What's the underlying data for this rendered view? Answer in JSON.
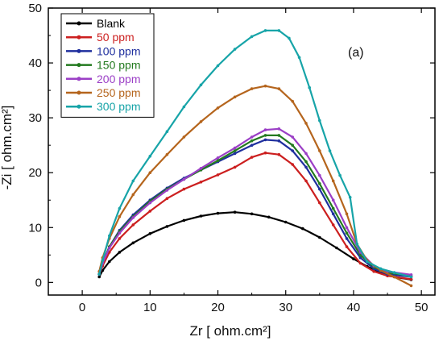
{
  "chart_data": {
    "type": "line",
    "title": "",
    "panel_label": "(a)",
    "xlabel": "Zr [ ohm.cm²]",
    "ylabel": "-Zi [ ohm.cm²]",
    "xlim": [
      -5,
      52
    ],
    "ylim": [
      -2.3,
      50
    ],
    "xticks": [
      0,
      10,
      20,
      30,
      40,
      50
    ],
    "yticks": [
      0,
      10,
      20,
      30,
      40,
      50
    ],
    "grid": false,
    "legend_position": "top-left",
    "series": [
      {
        "name": "Blank",
        "color": "#000000",
        "points": [
          [
            2.5,
            1.0
          ],
          [
            3.0,
            2.2
          ],
          [
            4.0,
            3.8
          ],
          [
            5.5,
            5.5
          ],
          [
            7.5,
            7.2
          ],
          [
            10.0,
            8.9
          ],
          [
            12.5,
            10.2
          ],
          [
            15.0,
            11.3
          ],
          [
            17.5,
            12.1
          ],
          [
            20.0,
            12.6
          ],
          [
            22.5,
            12.8
          ],
          [
            25.0,
            12.5
          ],
          [
            27.5,
            11.9
          ],
          [
            30.0,
            11.0
          ],
          [
            32.5,
            9.8
          ],
          [
            35.0,
            8.2
          ],
          [
            37.5,
            6.3
          ],
          [
            40.0,
            4.3
          ],
          [
            42.0,
            2.9
          ],
          [
            44.0,
            1.8
          ],
          [
            46.0,
            1.0
          ],
          [
            48.5,
            0.5
          ]
        ]
      },
      {
        "name": "50 ppm",
        "color": "#cc1f1f",
        "points": [
          [
            2.5,
            1.5
          ],
          [
            3.0,
            3.0
          ],
          [
            4.0,
            5.5
          ],
          [
            5.5,
            8.0
          ],
          [
            7.5,
            10.5
          ],
          [
            10.0,
            13.0
          ],
          [
            12.5,
            15.3
          ],
          [
            15.0,
            17.0
          ],
          [
            17.5,
            18.3
          ],
          [
            20.0,
            19.6
          ],
          [
            22.5,
            21.0
          ],
          [
            25.0,
            22.8
          ],
          [
            27.0,
            23.6
          ],
          [
            29.0,
            23.3
          ],
          [
            31.0,
            21.5
          ],
          [
            33.0,
            18.5
          ],
          [
            35.0,
            14.5
          ],
          [
            37.0,
            10.5
          ],
          [
            39.0,
            6.5
          ],
          [
            41.0,
            3.5
          ],
          [
            43.0,
            2.0
          ],
          [
            45.0,
            1.2
          ],
          [
            48.5,
            0.6
          ]
        ]
      },
      {
        "name": "100 ppm",
        "color": "#1f2f9e",
        "points": [
          [
            2.5,
            1.5
          ],
          [
            3.0,
            3.5
          ],
          [
            4.0,
            6.5
          ],
          [
            5.5,
            9.5
          ],
          [
            7.5,
            12.3
          ],
          [
            10.0,
            15.0
          ],
          [
            12.5,
            17.2
          ],
          [
            15.0,
            19.0
          ],
          [
            17.5,
            20.5
          ],
          [
            20.0,
            22.0
          ],
          [
            22.5,
            23.5
          ],
          [
            25.0,
            25.0
          ],
          [
            27.0,
            26.0
          ],
          [
            29.0,
            25.8
          ],
          [
            31.0,
            24.0
          ],
          [
            33.0,
            21.0
          ],
          [
            35.0,
            17.0
          ],
          [
            37.0,
            12.5
          ],
          [
            39.0,
            8.0
          ],
          [
            41.0,
            4.5
          ],
          [
            43.0,
            2.5
          ],
          [
            45.0,
            1.5
          ],
          [
            48.5,
            1.0
          ]
        ]
      },
      {
        "name": "150 ppm",
        "color": "#237a1f",
        "points": [
          [
            2.5,
            1.5
          ],
          [
            3.0,
            3.5
          ],
          [
            4.0,
            6.5
          ],
          [
            5.5,
            9.3
          ],
          [
            7.5,
            12.0
          ],
          [
            10.0,
            14.8
          ],
          [
            12.5,
            17.0
          ],
          [
            15.0,
            18.8
          ],
          [
            17.5,
            20.5
          ],
          [
            20.0,
            22.2
          ],
          [
            22.5,
            24.0
          ],
          [
            25.0,
            25.8
          ],
          [
            27.0,
            26.8
          ],
          [
            29.0,
            26.8
          ],
          [
            31.0,
            25.0
          ],
          [
            33.0,
            22.0
          ],
          [
            35.0,
            18.0
          ],
          [
            37.0,
            13.5
          ],
          [
            39.0,
            9.0
          ],
          [
            41.0,
            5.0
          ],
          [
            43.0,
            2.8
          ],
          [
            45.0,
            1.8
          ],
          [
            48.5,
            1.2
          ]
        ]
      },
      {
        "name": "200 ppm",
        "color": "#9b3fc6",
        "points": [
          [
            2.5,
            1.5
          ],
          [
            3.0,
            3.5
          ],
          [
            4.0,
            6.3
          ],
          [
            5.5,
            9.0
          ],
          [
            7.5,
            11.8
          ],
          [
            10.0,
            14.5
          ],
          [
            12.5,
            16.8
          ],
          [
            15.0,
            18.8
          ],
          [
            17.5,
            20.8
          ],
          [
            20.0,
            22.7
          ],
          [
            22.5,
            24.5
          ],
          [
            25.0,
            26.5
          ],
          [
            27.0,
            27.8
          ],
          [
            29.0,
            28.0
          ],
          [
            31.0,
            26.5
          ],
          [
            33.0,
            23.5
          ],
          [
            35.0,
            19.5
          ],
          [
            37.0,
            15.0
          ],
          [
            39.0,
            10.0
          ],
          [
            41.0,
            5.5
          ],
          [
            43.0,
            3.0
          ],
          [
            45.0,
            2.0
          ],
          [
            48.5,
            1.4
          ]
        ]
      },
      {
        "name": "250 ppm",
        "color": "#b5651d",
        "points": [
          [
            2.5,
            2.0
          ],
          [
            3.0,
            4.5
          ],
          [
            4.0,
            8.0
          ],
          [
            5.5,
            12.0
          ],
          [
            7.5,
            16.0
          ],
          [
            10.0,
            20.0
          ],
          [
            12.5,
            23.3
          ],
          [
            15.0,
            26.5
          ],
          [
            17.5,
            29.3
          ],
          [
            20.0,
            31.8
          ],
          [
            22.5,
            33.8
          ],
          [
            25.0,
            35.3
          ],
          [
            27.0,
            35.8
          ],
          [
            29.0,
            35.3
          ],
          [
            31.0,
            33.0
          ],
          [
            33.0,
            29.0
          ],
          [
            35.0,
            24.0
          ],
          [
            37.0,
            18.5
          ],
          [
            39.0,
            12.5
          ],
          [
            40.5,
            7.0
          ],
          [
            42.0,
            4.0
          ],
          [
            44.0,
            2.2
          ],
          [
            46.0,
            1.0
          ],
          [
            48.5,
            -0.6
          ]
        ]
      },
      {
        "name": "300 ppm",
        "color": "#17a4a8",
        "points": [
          [
            2.5,
            1.5
          ],
          [
            3.0,
            4.0
          ],
          [
            4.0,
            8.5
          ],
          [
            5.5,
            13.5
          ],
          [
            7.5,
            18.5
          ],
          [
            10.0,
            23.0
          ],
          [
            12.5,
            27.5
          ],
          [
            15.0,
            32.0
          ],
          [
            17.5,
            36.0
          ],
          [
            20.0,
            39.5
          ],
          [
            22.5,
            42.5
          ],
          [
            25.0,
            44.8
          ],
          [
            27.0,
            45.9
          ],
          [
            29.0,
            45.9
          ],
          [
            30.5,
            44.5
          ],
          [
            32.0,
            41.0
          ],
          [
            33.5,
            35.5
          ],
          [
            35.0,
            29.5
          ],
          [
            36.5,
            24.0
          ],
          [
            38.0,
            19.5
          ],
          [
            39.5,
            15.5
          ],
          [
            40.5,
            7.0
          ],
          [
            42.0,
            3.8
          ],
          [
            44.0,
            2.5
          ],
          [
            46.0,
            1.8
          ],
          [
            48.5,
            1.0
          ]
        ]
      }
    ]
  }
}
